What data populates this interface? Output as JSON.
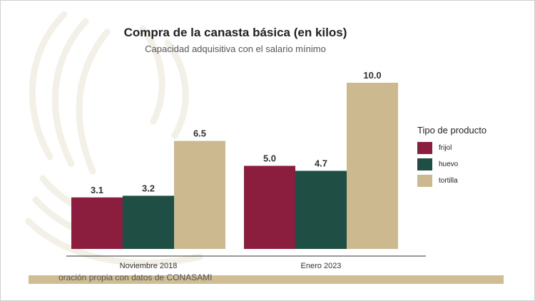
{
  "colors": {
    "frijol": "#8b1e3f",
    "huevo": "#1f4e45",
    "tortilla": "#cdb990",
    "watermark": "#f3f0e7",
    "source_band": "#cfbd94"
  },
  "footer": {
    "source": "oración propia con datos de CONASAMI"
  },
  "chart_data": {
    "type": "bar",
    "title": "Compra de la canasta básica (en kilos)",
    "subtitle": "Capacidad adquisitiva con el salario mínimo",
    "categories": [
      "Noviembre 2018",
      "Enero 2023"
    ],
    "series": [
      {
        "name": "frijol",
        "values": [
          3.1,
          5.0
        ],
        "labels": [
          "3.1",
          "5.0"
        ]
      },
      {
        "name": "huevo",
        "values": [
          3.2,
          4.7
        ],
        "labels": [
          "3.2",
          "4.7"
        ]
      },
      {
        "name": "tortilla",
        "values": [
          6.5,
          10.0
        ],
        "labels": [
          "6.5",
          "10.0"
        ]
      }
    ],
    "xlabel": "",
    "ylabel": "",
    "ylim": [
      0,
      10
    ],
    "legend": {
      "title": "Tipo de producto",
      "position": "right"
    },
    "grid": false
  }
}
